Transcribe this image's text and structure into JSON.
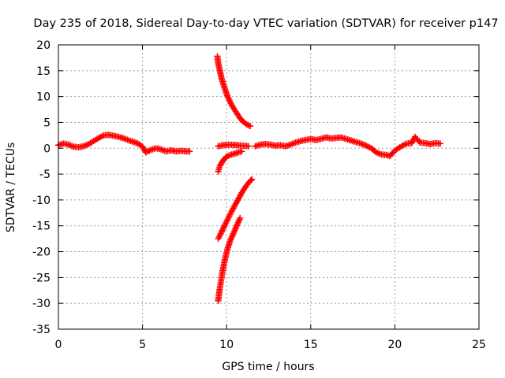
{
  "chart_data": {
    "type": "scatter",
    "title": "Day 235 of 2018, Sidereal Day-to-day VTEC variation (SDTVAR) for receiver p147",
    "xlabel": "GPS time / hours",
    "ylabel": "SDTVAR / TECUs",
    "xlim": [
      0,
      25
    ],
    "ylim": [
      -35,
      20
    ],
    "xticks": [
      0,
      5,
      10,
      15,
      20,
      25
    ],
    "yticks": [
      20,
      15,
      10,
      5,
      0,
      -5,
      -10,
      -15,
      -20,
      -25,
      -30,
      -35
    ],
    "grid": true,
    "marker": "+",
    "series_color": "#ff0000",
    "series": [
      {
        "name": "SDTVAR",
        "points": [
          [
            0.0,
            0.6
          ],
          [
            0.3,
            0.9
          ],
          [
            0.6,
            0.7
          ],
          [
            0.9,
            0.3
          ],
          [
            1.2,
            0.2
          ],
          [
            1.5,
            0.4
          ],
          [
            1.8,
            0.8
          ],
          [
            2.1,
            1.4
          ],
          [
            2.4,
            2.0
          ],
          [
            2.7,
            2.5
          ],
          [
            3.0,
            2.6
          ],
          [
            3.3,
            2.4
          ],
          [
            3.6,
            2.2
          ],
          [
            3.9,
            1.9
          ],
          [
            4.2,
            1.5
          ],
          [
            4.5,
            1.2
          ],
          [
            4.8,
            0.8
          ],
          [
            5.0,
            0.3
          ],
          [
            5.2,
            -0.8
          ],
          [
            5.5,
            -0.3
          ],
          [
            5.8,
            0.0
          ],
          [
            6.1,
            -0.2
          ],
          [
            6.4,
            -0.6
          ],
          [
            6.7,
            -0.4
          ],
          [
            7.0,
            -0.6
          ],
          [
            7.3,
            -0.5
          ],
          [
            7.6,
            -0.6
          ],
          [
            7.8,
            -0.6
          ],
          [
            9.45,
            17.8
          ],
          [
            9.5,
            16.5
          ],
          [
            9.6,
            15.0
          ],
          [
            9.7,
            13.5
          ],
          [
            9.85,
            12.0
          ],
          [
            10.0,
            10.5
          ],
          [
            10.2,
            9.0
          ],
          [
            10.4,
            7.8
          ],
          [
            10.6,
            6.8
          ],
          [
            10.8,
            5.8
          ],
          [
            11.0,
            5.1
          ],
          [
            11.2,
            4.6
          ],
          [
            11.4,
            4.3
          ],
          [
            9.5,
            0.4
          ],
          [
            9.8,
            0.6
          ],
          [
            10.2,
            0.7
          ],
          [
            10.6,
            0.6
          ],
          [
            11.0,
            0.5
          ],
          [
            11.3,
            0.4
          ],
          [
            9.5,
            -4.5
          ],
          [
            9.6,
            -3.4
          ],
          [
            9.8,
            -2.3
          ],
          [
            10.0,
            -1.6
          ],
          [
            10.3,
            -1.2
          ],
          [
            10.6,
            -0.9
          ],
          [
            10.9,
            -0.6
          ],
          [
            9.5,
            -17.5
          ],
          [
            9.7,
            -16.2
          ],
          [
            9.9,
            -14.8
          ],
          [
            10.1,
            -13.5
          ],
          [
            10.3,
            -12.2
          ],
          [
            10.5,
            -11.0
          ],
          [
            10.7,
            -9.8
          ],
          [
            10.9,
            -8.6
          ],
          [
            11.1,
            -7.6
          ],
          [
            11.3,
            -6.7
          ],
          [
            11.5,
            -6.0
          ],
          [
            9.5,
            -29.5
          ],
          [
            9.6,
            -27.0
          ],
          [
            9.75,
            -24.0
          ],
          [
            9.9,
            -21.5
          ],
          [
            10.05,
            -19.5
          ],
          [
            10.2,
            -18.0
          ],
          [
            10.4,
            -16.5
          ],
          [
            10.6,
            -15.0
          ],
          [
            10.8,
            -13.5
          ],
          [
            11.7,
            0.4
          ],
          [
            12.0,
            0.7
          ],
          [
            12.3,
            0.8
          ],
          [
            12.6,
            0.7
          ],
          [
            12.9,
            0.5
          ],
          [
            13.2,
            0.6
          ],
          [
            13.5,
            0.4
          ],
          [
            13.8,
            0.7
          ],
          [
            14.1,
            1.1
          ],
          [
            14.4,
            1.4
          ],
          [
            14.7,
            1.6
          ],
          [
            15.0,
            1.8
          ],
          [
            15.3,
            1.6
          ],
          [
            15.6,
            1.8
          ],
          [
            15.9,
            2.1
          ],
          [
            16.2,
            1.9
          ],
          [
            16.5,
            2.0
          ],
          [
            16.8,
            2.1
          ],
          [
            17.1,
            1.8
          ],
          [
            17.4,
            1.5
          ],
          [
            17.7,
            1.2
          ],
          [
            18.0,
            0.9
          ],
          [
            18.3,
            0.5
          ],
          [
            18.6,
            0.0
          ],
          [
            18.9,
            -0.8
          ],
          [
            19.2,
            -1.2
          ],
          [
            19.5,
            -1.3
          ],
          [
            19.7,
            -1.5
          ],
          [
            19.9,
            -0.8
          ],
          [
            20.1,
            -0.2
          ],
          [
            20.4,
            0.4
          ],
          [
            20.7,
            0.9
          ],
          [
            21.0,
            1.0
          ],
          [
            21.2,
            2.2
          ],
          [
            21.5,
            1.1
          ],
          [
            21.8,
            1.0
          ],
          [
            22.1,
            0.8
          ],
          [
            22.4,
            1.0
          ],
          [
            22.7,
            0.9
          ]
        ]
      }
    ]
  }
}
